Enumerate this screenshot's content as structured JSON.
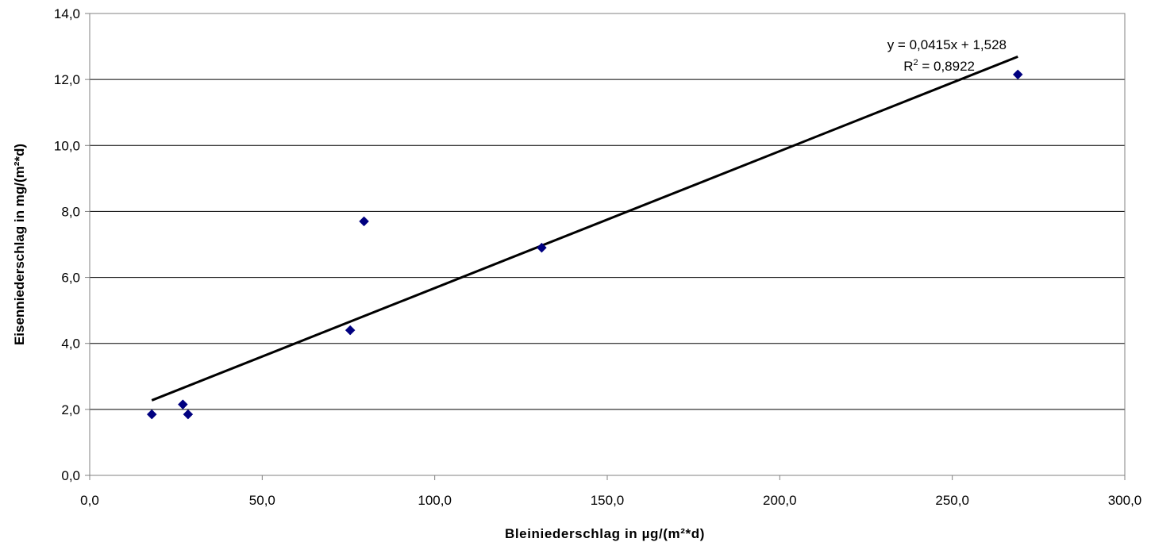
{
  "chart_data": {
    "type": "scatter",
    "xlabel": "Bleiniederschlag in µg/(m²*d)",
    "ylabel": "Eisenniederschlag in mg/(m²*d)",
    "xlim": [
      0,
      300
    ],
    "ylim": [
      0,
      14
    ],
    "x_ticks": [
      0,
      50,
      100,
      150,
      200,
      250,
      300
    ],
    "y_ticks": [
      0,
      2,
      4,
      6,
      8,
      10,
      12,
      14
    ],
    "x_tick_labels": [
      "0,0",
      "50,0",
      "100,0",
      "150,0",
      "200,0",
      "250,0",
      "300,0"
    ],
    "y_tick_labels": [
      "0,0",
      "2,0",
      "4,0",
      "6,0",
      "8,0",
      "10,0",
      "12,0",
      "14,0"
    ],
    "grid": "horizontal",
    "series": [
      {
        "color": "#000080",
        "marker": "diamond",
        "points": [
          {
            "x": 18.0,
            "y": 1.85
          },
          {
            "x": 27.0,
            "y": 2.15
          },
          {
            "x": 28.5,
            "y": 1.85
          },
          {
            "x": 75.5,
            "y": 4.4
          },
          {
            "x": 79.5,
            "y": 7.7
          },
          {
            "x": 131.0,
            "y": 6.9
          },
          {
            "x": 269.0,
            "y": 12.15
          }
        ]
      }
    ],
    "trendline": {
      "slope": 0.0415,
      "intercept": 1.528,
      "x_range": [
        18,
        269
      ],
      "color": "#000000",
      "equation": "y = 0,0415x + 1,528",
      "r2_prefix": "R",
      "r2_sup": "2",
      "r2_value": " = 0,8922"
    }
  }
}
